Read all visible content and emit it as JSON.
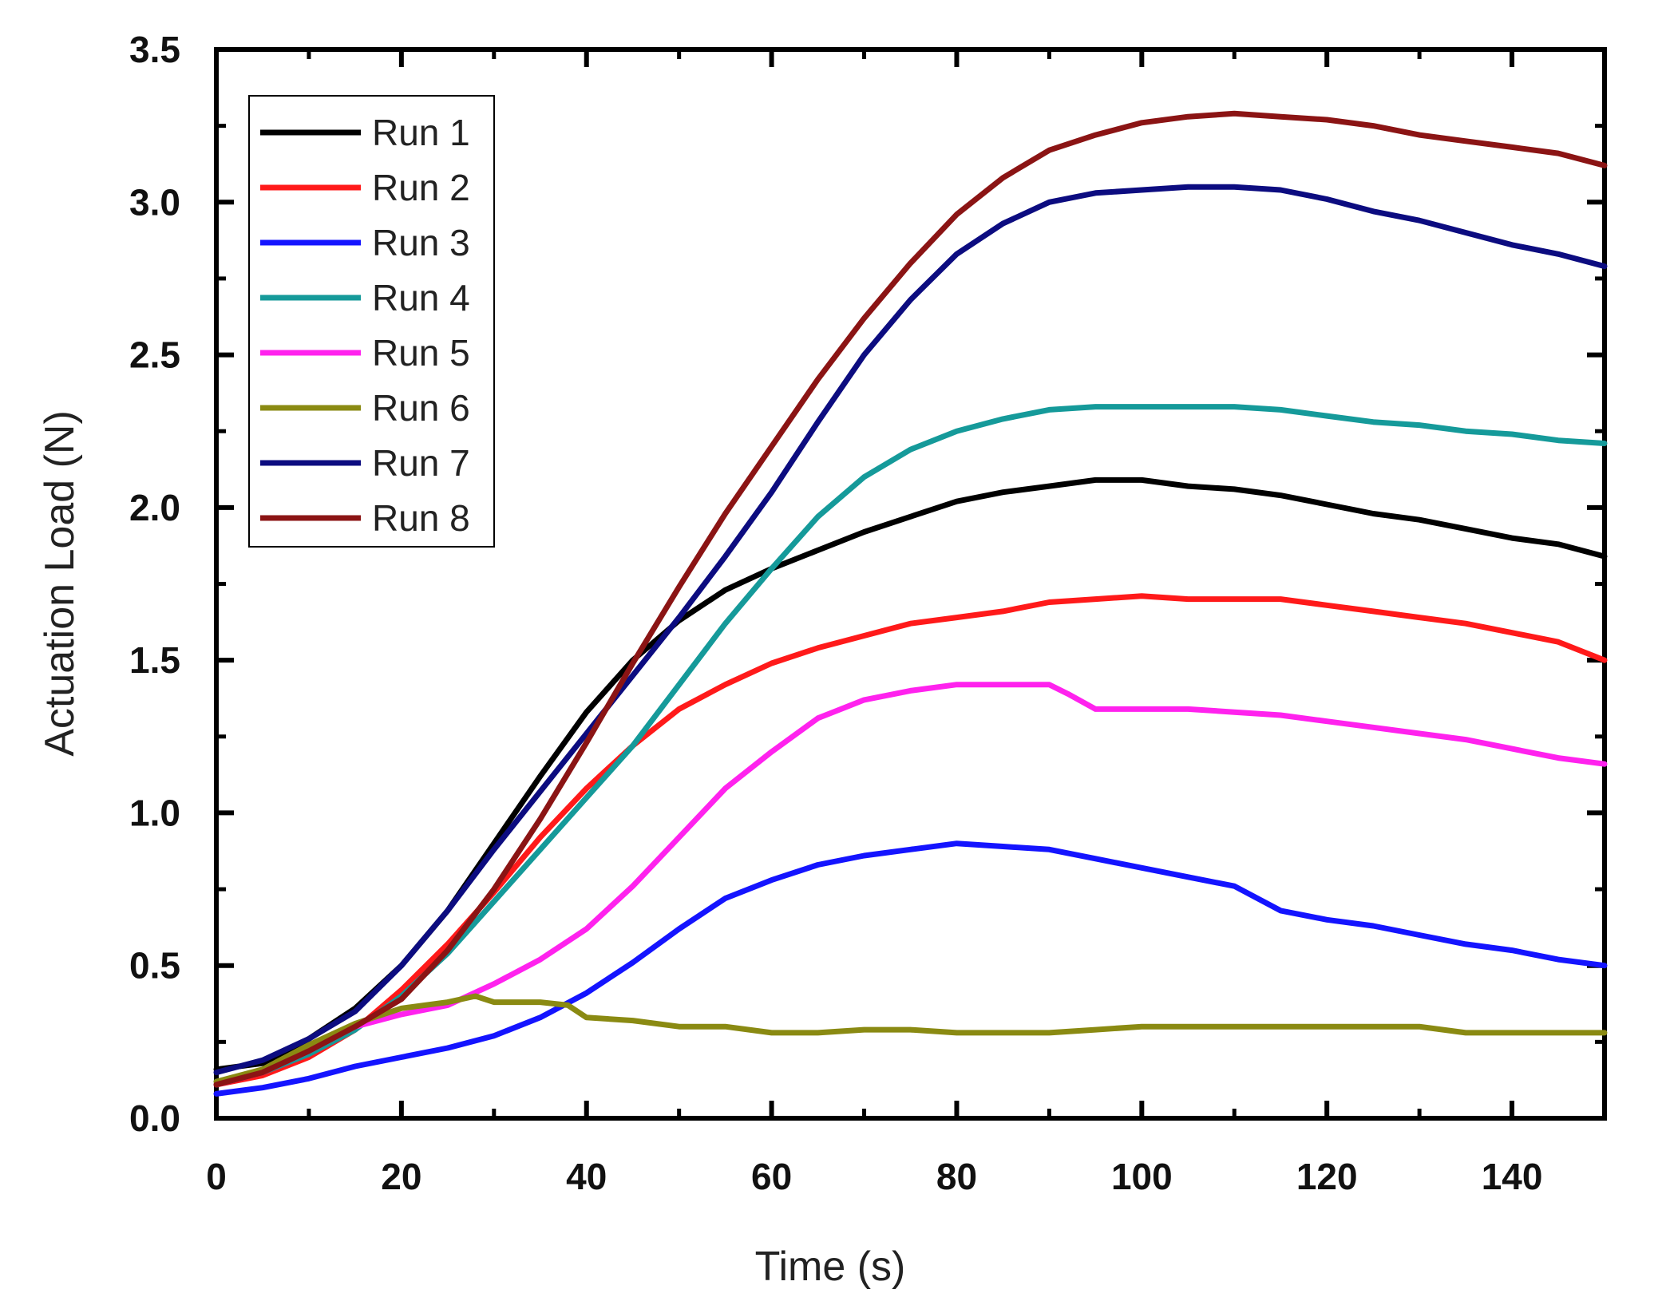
{
  "chart_data": {
    "type": "line",
    "xlabel": "Time (s)",
    "ylabel": "Actuation Load (N)",
    "xlim": [
      0,
      150
    ],
    "ylim": [
      0,
      3.5
    ],
    "x_ticks": [
      0,
      20,
      40,
      60,
      80,
      100,
      120,
      140
    ],
    "x_tick_labels": [
      "0",
      "20",
      "40",
      "60",
      "80",
      "100",
      "120",
      "140"
    ],
    "y_ticks": [
      0,
      0.5,
      1.0,
      1.5,
      2.0,
      2.5,
      3.0,
      3.5
    ],
    "y_tick_labels": [
      "0.0",
      "0.5",
      "1.0",
      "1.5",
      "2.0",
      "2.5",
      "3.0",
      "3.5"
    ],
    "legend_position": "top-left",
    "grid": false,
    "series": [
      {
        "name": "Run 1",
        "color": "#000000",
        "x": [
          0,
          5,
          10,
          15,
          20,
          25,
          30,
          35,
          40,
          45,
          50,
          55,
          60,
          65,
          70,
          75,
          80,
          85,
          90,
          95,
          100,
          105,
          110,
          115,
          120,
          125,
          130,
          135,
          140,
          145,
          150
        ],
        "y": [
          0.16,
          0.18,
          0.26,
          0.36,
          0.5,
          0.68,
          0.9,
          1.12,
          1.33,
          1.5,
          1.63,
          1.73,
          1.8,
          1.86,
          1.92,
          1.97,
          2.02,
          2.05,
          2.07,
          2.09,
          2.09,
          2.07,
          2.06,
          2.04,
          2.01,
          1.98,
          1.96,
          1.93,
          1.9,
          1.88,
          1.84
        ]
      },
      {
        "name": "Run 2",
        "color": "#ff1a1a",
        "x": [
          0,
          5,
          10,
          15,
          20,
          25,
          30,
          35,
          40,
          45,
          50,
          55,
          60,
          65,
          70,
          75,
          80,
          85,
          90,
          95,
          100,
          105,
          110,
          115,
          120,
          125,
          130,
          135,
          140,
          145,
          150
        ],
        "y": [
          0.11,
          0.14,
          0.2,
          0.29,
          0.42,
          0.57,
          0.74,
          0.92,
          1.08,
          1.22,
          1.34,
          1.42,
          1.49,
          1.54,
          1.58,
          1.62,
          1.64,
          1.66,
          1.69,
          1.7,
          1.71,
          1.7,
          1.7,
          1.7,
          1.68,
          1.66,
          1.64,
          1.62,
          1.59,
          1.56,
          1.5
        ]
      },
      {
        "name": "Run 3",
        "color": "#1414ff",
        "x": [
          0,
          5,
          10,
          15,
          20,
          25,
          30,
          35,
          40,
          45,
          50,
          55,
          60,
          65,
          70,
          75,
          80,
          85,
          90,
          95,
          100,
          105,
          110,
          115,
          120,
          125,
          130,
          135,
          140,
          145,
          150
        ],
        "y": [
          0.08,
          0.1,
          0.13,
          0.17,
          0.2,
          0.23,
          0.27,
          0.33,
          0.41,
          0.51,
          0.62,
          0.72,
          0.78,
          0.83,
          0.86,
          0.88,
          0.9,
          0.89,
          0.88,
          0.85,
          0.82,
          0.79,
          0.76,
          0.68,
          0.65,
          0.63,
          0.6,
          0.57,
          0.55,
          0.52,
          0.5
        ]
      },
      {
        "name": "Run 4",
        "color": "#159a9a",
        "x": [
          0,
          5,
          10,
          15,
          20,
          25,
          30,
          35,
          40,
          45,
          50,
          55,
          60,
          65,
          70,
          75,
          80,
          85,
          90,
          95,
          100,
          105,
          110,
          115,
          120,
          125,
          130,
          135,
          140,
          145,
          150
        ],
        "y": [
          0.12,
          0.15,
          0.21,
          0.29,
          0.4,
          0.54,
          0.71,
          0.88,
          1.05,
          1.22,
          1.42,
          1.62,
          1.8,
          1.97,
          2.1,
          2.19,
          2.25,
          2.29,
          2.32,
          2.33,
          2.33,
          2.33,
          2.33,
          2.32,
          2.3,
          2.28,
          2.27,
          2.25,
          2.24,
          2.22,
          2.21
        ]
      },
      {
        "name": "Run 5",
        "color": "#ff22ee",
        "x": [
          0,
          5,
          10,
          15,
          20,
          25,
          30,
          35,
          40,
          45,
          50,
          55,
          60,
          65,
          70,
          75,
          80,
          85,
          90,
          92,
          95,
          100,
          105,
          110,
          115,
          120,
          125,
          130,
          135,
          140,
          145,
          150
        ],
        "y": [
          0.11,
          0.15,
          0.22,
          0.3,
          0.34,
          0.37,
          0.44,
          0.52,
          0.62,
          0.76,
          0.92,
          1.08,
          1.2,
          1.31,
          1.37,
          1.4,
          1.42,
          1.42,
          1.42,
          1.39,
          1.34,
          1.34,
          1.34,
          1.33,
          1.32,
          1.3,
          1.28,
          1.26,
          1.24,
          1.21,
          1.18,
          1.16
        ]
      },
      {
        "name": "Run 6",
        "color": "#8a8a12",
        "x": [
          0,
          5,
          10,
          15,
          20,
          25,
          28,
          30,
          35,
          38,
          40,
          45,
          50,
          55,
          60,
          65,
          70,
          75,
          80,
          85,
          90,
          95,
          100,
          105,
          110,
          115,
          120,
          125,
          130,
          135,
          140,
          145,
          150
        ],
        "y": [
          0.12,
          0.16,
          0.24,
          0.31,
          0.36,
          0.38,
          0.4,
          0.38,
          0.38,
          0.37,
          0.33,
          0.32,
          0.3,
          0.3,
          0.28,
          0.28,
          0.29,
          0.29,
          0.28,
          0.28,
          0.28,
          0.29,
          0.3,
          0.3,
          0.3,
          0.3,
          0.3,
          0.3,
          0.3,
          0.28,
          0.28,
          0.28,
          0.28
        ]
      },
      {
        "name": "Run 7",
        "color": "#0c0c80",
        "x": [
          0,
          5,
          10,
          15,
          20,
          25,
          30,
          35,
          40,
          45,
          50,
          55,
          60,
          65,
          70,
          75,
          80,
          85,
          90,
          95,
          100,
          105,
          110,
          115,
          120,
          125,
          130,
          135,
          140,
          145,
          150
        ],
        "y": [
          0.15,
          0.19,
          0.26,
          0.35,
          0.5,
          0.68,
          0.88,
          1.07,
          1.26,
          1.45,
          1.64,
          1.84,
          2.05,
          2.28,
          2.5,
          2.68,
          2.83,
          2.93,
          3.0,
          3.03,
          3.04,
          3.05,
          3.05,
          3.04,
          3.01,
          2.97,
          2.94,
          2.9,
          2.86,
          2.83,
          2.79
        ]
      },
      {
        "name": "Run 8",
        "color": "#8b1414",
        "x": [
          0,
          5,
          10,
          15,
          20,
          25,
          30,
          35,
          40,
          45,
          50,
          55,
          60,
          65,
          70,
          75,
          80,
          85,
          90,
          95,
          100,
          105,
          110,
          115,
          120,
          125,
          130,
          135,
          140,
          145,
          150
        ],
        "y": [
          0.11,
          0.15,
          0.22,
          0.3,
          0.39,
          0.55,
          0.75,
          0.98,
          1.23,
          1.49,
          1.74,
          1.98,
          2.2,
          2.42,
          2.62,
          2.8,
          2.96,
          3.08,
          3.17,
          3.22,
          3.26,
          3.28,
          3.29,
          3.28,
          3.27,
          3.25,
          3.22,
          3.2,
          3.18,
          3.16,
          3.12
        ]
      }
    ]
  }
}
